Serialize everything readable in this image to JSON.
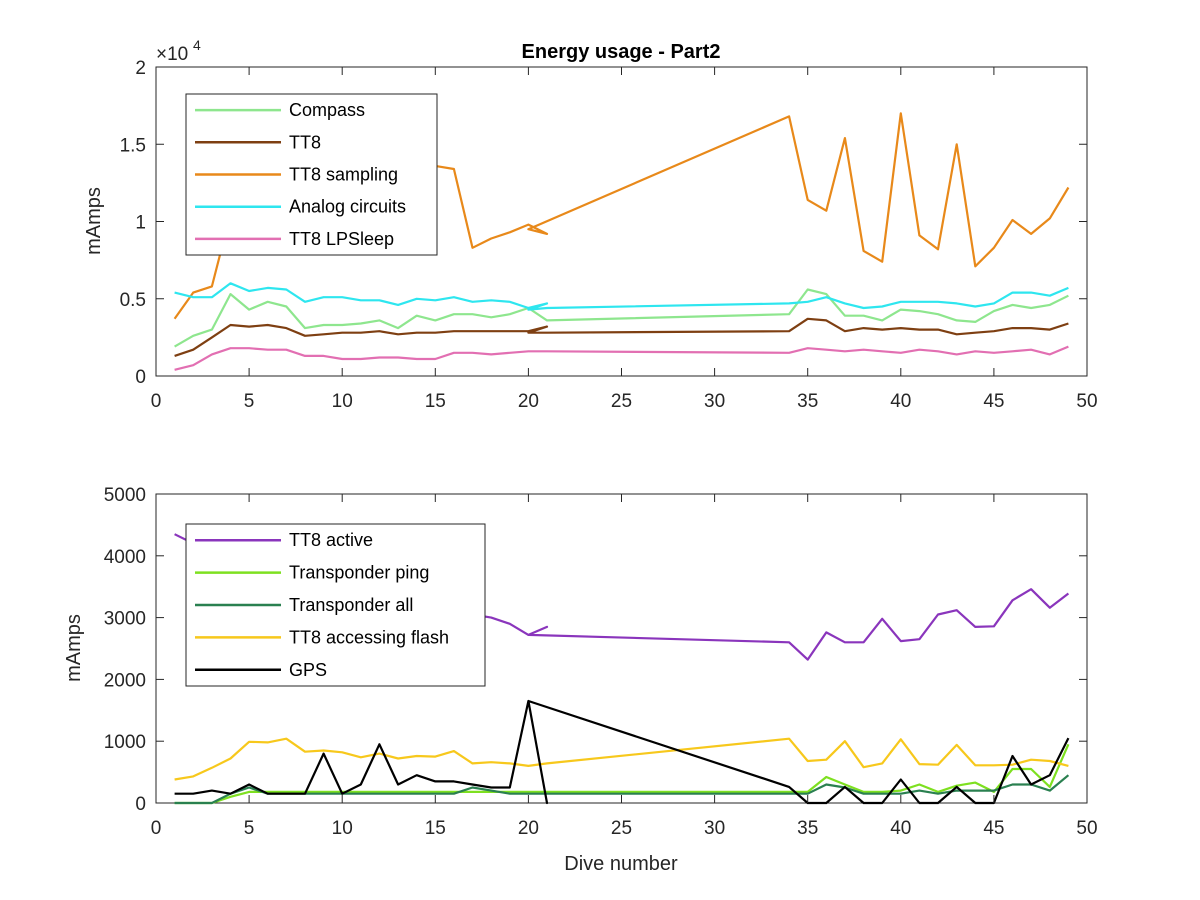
{
  "figure": {
    "title": "Energy usage - Part2",
    "xlabel": "Dive number"
  },
  "chart_data": [
    {
      "type": "line",
      "title": "Energy usage - Part2",
      "xlabel": "",
      "ylabel": "mAmps",
      "xlim": [
        0,
        50
      ],
      "ylim": [
        0,
        20000
      ],
      "x_ticks": [
        0,
        5,
        10,
        15,
        20,
        25,
        30,
        35,
        40,
        45,
        50
      ],
      "y_ticks": [
        0,
        5000,
        10000,
        15000,
        20000
      ],
      "y_tick_labels": [
        "0",
        "0.5",
        "1",
        "1.5",
        "2"
      ],
      "y_multiplier": "×10^4",
      "grid": false,
      "legend_position": "top-left",
      "series": [
        {
          "name": "Compass",
          "color": "#8ee68e",
          "x": [
            1,
            2,
            3,
            4,
            5,
            6,
            7,
            8,
            9,
            10,
            11,
            12,
            13,
            14,
            15,
            16,
            17,
            18,
            19,
            20,
            21,
            34,
            35,
            36,
            37,
            38,
            39,
            40,
            41,
            42,
            43,
            44,
            45,
            46,
            47,
            48,
            49
          ],
          "y": [
            1900,
            2600,
            3000,
            5300,
            4300,
            4800,
            4500,
            3100,
            3300,
            3300,
            3400,
            3600,
            3100,
            3900,
            3600,
            4000,
            4000,
            3800,
            4000,
            4400,
            3600,
            4000,
            5600,
            5300,
            3900,
            3900,
            3600,
            4300,
            4200,
            4000,
            3600,
            3500,
            4200,
            4600,
            4400,
            4600,
            5200
          ]
        },
        {
          "name": "TT8",
          "color": "#7e3f12",
          "x": [
            1,
            2,
            3,
            4,
            5,
            6,
            7,
            8,
            9,
            10,
            11,
            12,
            13,
            14,
            15,
            16,
            17,
            18,
            19,
            20,
            21,
            20,
            21,
            34,
            35,
            36,
            37,
            38,
            39,
            40,
            41,
            42,
            43,
            44,
            45,
            46,
            47,
            48,
            49
          ],
          "y": [
            1300,
            1700,
            2500,
            3300,
            3200,
            3300,
            3100,
            2600,
            2700,
            2800,
            2800,
            2900,
            2700,
            2800,
            2800,
            2900,
            2900,
            2900,
            2900,
            2900,
            3200,
            2800,
            2800,
            2900,
            3700,
            3600,
            2900,
            3100,
            3000,
            3100,
            3000,
            3000,
            2700,
            2800,
            2900,
            3100,
            3100,
            3000,
            3400
          ]
        },
        {
          "name": "TT8 sampling",
          "color": "#e8891a",
          "x": [
            1,
            2,
            3,
            4,
            5,
            6,
            7,
            8,
            9,
            10,
            11,
            12,
            13,
            14,
            15,
            16,
            17,
            18,
            19,
            20,
            21,
            20,
            34,
            35,
            36,
            37,
            38,
            39,
            40,
            41,
            42,
            43,
            44,
            45,
            46,
            47,
            48,
            49
          ],
          "y": [
            3700,
            5400,
            5800,
            10500,
            11000,
            11200,
            11500,
            11800,
            12000,
            12200,
            12400,
            12600,
            12800,
            13000,
            13600,
            13400,
            8300,
            8900,
            9300,
            9800,
            9200,
            9500,
            16800,
            11400,
            10700,
            15400,
            8100,
            7400,
            17000,
            9100,
            8200,
            15000,
            7100,
            8300,
            10100,
            9200,
            10200,
            12200
          ]
        },
        {
          "name": "Analog circuits",
          "color": "#2ee6ef",
          "x": [
            1,
            2,
            3,
            4,
            5,
            6,
            7,
            8,
            9,
            10,
            11,
            12,
            13,
            14,
            15,
            16,
            17,
            18,
            19,
            20,
            21,
            20,
            21,
            34,
            35,
            36,
            37,
            38,
            39,
            40,
            41,
            42,
            43,
            44,
            45,
            46,
            47,
            48,
            49
          ],
          "y": [
            5400,
            5100,
            5100,
            6000,
            5500,
            5700,
            5600,
            4800,
            5100,
            5100,
            4900,
            4900,
            4600,
            5000,
            4900,
            5100,
            4800,
            4900,
            4800,
            4400,
            4700,
            4300,
            4400,
            4700,
            4800,
            5100,
            4700,
            4400,
            4500,
            4800,
            4800,
            4800,
            4700,
            4500,
            4700,
            5400,
            5400,
            5200,
            5700
          ]
        },
        {
          "name": "TT8 LPSleep",
          "color": "#e26fb2",
          "x": [
            1,
            2,
            3,
            4,
            5,
            6,
            7,
            8,
            9,
            10,
            11,
            12,
            13,
            14,
            15,
            16,
            17,
            18,
            19,
            20,
            21,
            34,
            35,
            36,
            37,
            38,
            39,
            40,
            41,
            42,
            43,
            44,
            45,
            46,
            47,
            48,
            49
          ],
          "y": [
            400,
            700,
            1400,
            1800,
            1800,
            1700,
            1700,
            1300,
            1300,
            1100,
            1100,
            1200,
            1200,
            1100,
            1100,
            1500,
            1500,
            1400,
            1500,
            1600,
            1600,
            1500,
            1800,
            1700,
            1600,
            1700,
            1600,
            1500,
            1700,
            1600,
            1400,
            1600,
            1500,
            1600,
            1700,
            1400,
            1900
          ]
        }
      ]
    },
    {
      "type": "line",
      "title": "",
      "xlabel": "Dive number",
      "ylabel": "mAmps",
      "xlim": [
        0,
        50
      ],
      "ylim": [
        0,
        5000
      ],
      "x_ticks": [
        0,
        5,
        10,
        15,
        20,
        25,
        30,
        35,
        40,
        45,
        50
      ],
      "y_ticks": [
        0,
        1000,
        2000,
        3000,
        4000,
        5000
      ],
      "y_tick_labels": [
        "0",
        "1000",
        "2000",
        "3000",
        "4000",
        "5000"
      ],
      "grid": false,
      "legend_position": "top-left",
      "series": [
        {
          "name": "TT8 active",
          "color": "#8a35bc",
          "x": [
            1,
            2,
            3,
            4,
            5,
            6,
            7,
            8,
            9,
            10,
            11,
            12,
            13,
            14,
            15,
            16,
            17,
            18,
            19,
            20,
            21,
            20,
            34,
            35,
            36,
            37,
            38,
            39,
            40,
            41,
            42,
            43,
            44,
            45,
            46,
            47,
            48,
            49
          ],
          "y": [
            4350,
            4200,
            4150,
            4100,
            4000,
            3900,
            3850,
            3800,
            3700,
            3600,
            3550,
            3500,
            3400,
            3350,
            3250,
            3150,
            3050,
            3000,
            2900,
            2720,
            2850,
            2720,
            2600,
            2320,
            2760,
            2600,
            2600,
            2980,
            2620,
            2650,
            3050,
            3120,
            2850,
            2860,
            3280,
            3460,
            3160,
            3390
          ]
        },
        {
          "name": "Transponder ping",
          "color": "#7ee020",
          "x": [
            1,
            2,
            3,
            4,
            5,
            6,
            7,
            8,
            9,
            10,
            11,
            12,
            13,
            14,
            15,
            16,
            17,
            18,
            19,
            20,
            21,
            34,
            35,
            36,
            37,
            38,
            39,
            40,
            41,
            42,
            43,
            44,
            45,
            46,
            47,
            48,
            49
          ],
          "y": [
            0,
            0,
            0,
            100,
            180,
            180,
            180,
            180,
            180,
            180,
            180,
            180,
            180,
            180,
            180,
            180,
            180,
            180,
            180,
            180,
            180,
            180,
            180,
            420,
            300,
            180,
            180,
            200,
            300,
            180,
            280,
            330,
            180,
            550,
            550,
            260,
            950
          ]
        },
        {
          "name": "Transponder all",
          "color": "#2a8050",
          "x": [
            1,
            2,
            3,
            4,
            5,
            6,
            7,
            8,
            9,
            10,
            11,
            12,
            13,
            14,
            15,
            16,
            17,
            18,
            19,
            20,
            21,
            34,
            35,
            36,
            37,
            38,
            39,
            40,
            41,
            42,
            43,
            44,
            45,
            46,
            47,
            48,
            49
          ],
          "y": [
            0,
            0,
            0,
            150,
            250,
            150,
            150,
            150,
            150,
            150,
            150,
            150,
            150,
            150,
            150,
            150,
            250,
            200,
            150,
            150,
            150,
            150,
            150,
            300,
            250,
            150,
            150,
            150,
            200,
            150,
            200,
            200,
            200,
            300,
            300,
            200,
            450
          ]
        },
        {
          "name": "TT8 accessing flash",
          "color": "#f7c81c",
          "x": [
            1,
            2,
            3,
            4,
            5,
            6,
            7,
            8,
            9,
            10,
            11,
            12,
            13,
            14,
            15,
            16,
            17,
            18,
            19,
            20,
            21,
            34,
            35,
            36,
            37,
            38,
            39,
            40,
            41,
            42,
            43,
            44,
            45,
            46,
            47,
            48,
            49
          ],
          "y": [
            380,
            430,
            570,
            720,
            990,
            980,
            1040,
            830,
            850,
            820,
            740,
            800,
            720,
            760,
            750,
            840,
            640,
            660,
            640,
            600,
            640,
            1040,
            680,
            700,
            1000,
            580,
            640,
            1030,
            630,
            620,
            940,
            610,
            610,
            620,
            700,
            680,
            600
          ]
        },
        {
          "name": "GPS",
          "color": "#000000",
          "x": [
            1,
            2,
            3,
            4,
            5,
            6,
            7,
            8,
            9,
            10,
            11,
            12,
            13,
            14,
            15,
            16,
            17,
            18,
            19,
            20,
            21,
            20,
            34,
            35,
            36,
            37,
            38,
            39,
            40,
            41,
            42,
            43,
            44,
            45,
            46,
            47,
            48,
            49
          ],
          "y": [
            150,
            150,
            200,
            150,
            300,
            150,
            150,
            150,
            800,
            150,
            300,
            950,
            300,
            450,
            350,
            350,
            300,
            250,
            250,
            1650,
            0,
            1650,
            260,
            0,
            0,
            260,
            0,
            0,
            380,
            0,
            0,
            260,
            0,
            0,
            760,
            300,
            450,
            1050
          ]
        }
      ]
    }
  ]
}
